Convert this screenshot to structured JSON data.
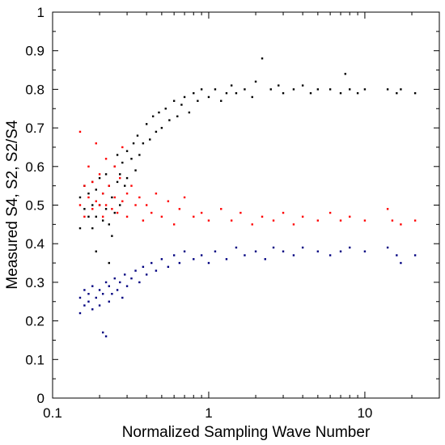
{
  "chart_data": {
    "type": "scatter",
    "title": "",
    "xlabel": "Normalized Sampling Wave Number",
    "ylabel": "Measured S4,  S2,  S2/S4",
    "x_scale": "log",
    "xlim": [
      0.1,
      30
    ],
    "ylim": [
      0,
      1
    ],
    "x_ticks": [
      0.1,
      1,
      10
    ],
    "x_tick_labels": [
      "0.1",
      "1",
      "10"
    ],
    "y_ticks": [
      0,
      0.1,
      0.2,
      0.3,
      0.4,
      0.5,
      0.6,
      0.7,
      0.8,
      0.9,
      1
    ],
    "y_tick_labels": [
      "0",
      "0.1",
      "0.2",
      "0.3",
      "0.4",
      "0.5",
      "0.6",
      "0.7",
      "0.8",
      "0.9",
      "1"
    ],
    "grid": false,
    "legend": "none",
    "series": [
      {
        "color": "#000000",
        "points": [
          [
            0.15,
            0.44
          ],
          [
            0.15,
            0.52
          ],
          [
            0.16,
            0.49
          ],
          [
            0.16,
            0.55
          ],
          [
            0.17,
            0.47
          ],
          [
            0.17,
            0.53
          ],
          [
            0.18,
            0.44
          ],
          [
            0.18,
            0.5
          ],
          [
            0.18,
            0.56
          ],
          [
            0.19,
            0.38
          ],
          [
            0.19,
            0.47
          ],
          [
            0.19,
            0.54
          ],
          [
            0.2,
            0.5
          ],
          [
            0.2,
            0.57
          ],
          [
            0.21,
            0.46
          ],
          [
            0.21,
            0.53
          ],
          [
            0.22,
            0.49
          ],
          [
            0.22,
            0.58
          ],
          [
            0.23,
            0.35
          ],
          [
            0.23,
            0.45
          ],
          [
            0.23,
            0.55
          ],
          [
            0.24,
            0.42
          ],
          [
            0.24,
            0.52
          ],
          [
            0.25,
            0.6
          ],
          [
            0.25,
            0.48
          ],
          [
            0.26,
            0.56
          ],
          [
            0.26,
            0.63
          ],
          [
            0.27,
            0.5
          ],
          [
            0.27,
            0.58
          ],
          [
            0.28,
            0.61
          ],
          [
            0.29,
            0.55
          ],
          [
            0.3,
            0.64
          ],
          [
            0.3,
            0.57
          ],
          [
            0.32,
            0.62
          ],
          [
            0.33,
            0.66
          ],
          [
            0.34,
            0.59
          ],
          [
            0.35,
            0.68
          ],
          [
            0.36,
            0.63
          ],
          [
            0.38,
            0.66
          ],
          [
            0.4,
            0.71
          ],
          [
            0.42,
            0.67
          ],
          [
            0.44,
            0.73
          ],
          [
            0.46,
            0.69
          ],
          [
            0.48,
            0.74
          ],
          [
            0.5,
            0.7
          ],
          [
            0.53,
            0.75
          ],
          [
            0.56,
            0.72
          ],
          [
            0.6,
            0.77
          ],
          [
            0.63,
            0.73
          ],
          [
            0.67,
            0.76
          ],
          [
            0.7,
            0.78
          ],
          [
            0.75,
            0.74
          ],
          [
            0.8,
            0.79
          ],
          [
            0.85,
            0.77
          ],
          [
            0.9,
            0.8
          ],
          [
            1.0,
            0.78
          ],
          [
            1.1,
            0.8
          ],
          [
            1.2,
            0.77
          ],
          [
            1.3,
            0.79
          ],
          [
            1.4,
            0.81
          ],
          [
            1.5,
            0.79
          ],
          [
            1.7,
            0.8
          ],
          [
            1.9,
            0.78
          ],
          [
            2.0,
            0.82
          ],
          [
            2.2,
            0.88
          ],
          [
            2.5,
            0.8
          ],
          [
            2.8,
            0.81
          ],
          [
            3.0,
            0.79
          ],
          [
            3.5,
            0.8
          ],
          [
            4.0,
            0.81
          ],
          [
            4.5,
            0.79
          ],
          [
            5.0,
            0.8
          ],
          [
            6.0,
            0.8
          ],
          [
            7.0,
            0.79
          ],
          [
            7.5,
            0.84
          ],
          [
            8.0,
            0.8
          ],
          [
            9.0,
            0.79
          ],
          [
            10.0,
            0.8
          ],
          [
            14.0,
            0.8
          ],
          [
            16.0,
            0.79
          ],
          [
            17.0,
            0.8
          ],
          [
            21.0,
            0.79
          ]
        ]
      },
      {
        "color": "#ff0000",
        "points": [
          [
            0.15,
            0.69
          ],
          [
            0.15,
            0.5
          ],
          [
            0.16,
            0.55
          ],
          [
            0.16,
            0.47
          ],
          [
            0.17,
            0.6
          ],
          [
            0.17,
            0.52
          ],
          [
            0.18,
            0.49
          ],
          [
            0.18,
            0.56
          ],
          [
            0.19,
            0.51
          ],
          [
            0.19,
            0.66
          ],
          [
            0.2,
            0.5
          ],
          [
            0.2,
            0.58
          ],
          [
            0.21,
            0.53
          ],
          [
            0.21,
            0.47
          ],
          [
            0.22,
            0.62
          ],
          [
            0.22,
            0.5
          ],
          [
            0.23,
            0.55
          ],
          [
            0.24,
            0.49
          ],
          [
            0.25,
            0.6
          ],
          [
            0.25,
            0.52
          ],
          [
            0.26,
            0.48
          ],
          [
            0.27,
            0.57
          ],
          [
            0.28,
            0.51
          ],
          [
            0.28,
            0.65
          ],
          [
            0.3,
            0.53
          ],
          [
            0.3,
            0.47
          ],
          [
            0.32,
            0.55
          ],
          [
            0.34,
            0.5
          ],
          [
            0.36,
            0.52
          ],
          [
            0.38,
            0.46
          ],
          [
            0.4,
            0.5
          ],
          [
            0.43,
            0.48
          ],
          [
            0.46,
            0.53
          ],
          [
            0.5,
            0.47
          ],
          [
            0.55,
            0.51
          ],
          [
            0.6,
            0.45
          ],
          [
            0.65,
            0.49
          ],
          [
            0.7,
            0.52
          ],
          [
            0.8,
            0.47
          ],
          [
            0.9,
            0.48
          ],
          [
            1.0,
            0.46
          ],
          [
            1.2,
            0.49
          ],
          [
            1.4,
            0.46
          ],
          [
            1.6,
            0.48
          ],
          [
            1.9,
            0.45
          ],
          [
            2.2,
            0.47
          ],
          [
            2.6,
            0.46
          ],
          [
            3.0,
            0.48
          ],
          [
            3.5,
            0.45
          ],
          [
            4.0,
            0.47
          ],
          [
            5.0,
            0.46
          ],
          [
            6.0,
            0.48
          ],
          [
            7.0,
            0.46
          ],
          [
            8.0,
            0.47
          ],
          [
            10.0,
            0.46
          ],
          [
            14.0,
            0.49
          ],
          [
            15.0,
            0.46
          ],
          [
            17.0,
            0.45
          ],
          [
            21.0,
            0.46
          ]
        ]
      },
      {
        "color": "#000080",
        "points": [
          [
            0.15,
            0.22
          ],
          [
            0.15,
            0.26
          ],
          [
            0.16,
            0.24
          ],
          [
            0.16,
            0.28
          ],
          [
            0.17,
            0.25
          ],
          [
            0.17,
            0.27
          ],
          [
            0.18,
            0.23
          ],
          [
            0.18,
            0.29
          ],
          [
            0.19,
            0.26
          ],
          [
            0.2,
            0.28
          ],
          [
            0.2,
            0.24
          ],
          [
            0.21,
            0.17
          ],
          [
            0.21,
            0.27
          ],
          [
            0.22,
            0.3
          ],
          [
            0.22,
            0.16
          ],
          [
            0.23,
            0.25
          ],
          [
            0.23,
            0.29
          ],
          [
            0.24,
            0.27
          ],
          [
            0.25,
            0.31
          ],
          [
            0.26,
            0.28
          ],
          [
            0.27,
            0.3
          ],
          [
            0.28,
            0.26
          ],
          [
            0.29,
            0.32
          ],
          [
            0.3,
            0.29
          ],
          [
            0.32,
            0.31
          ],
          [
            0.34,
            0.33
          ],
          [
            0.36,
            0.3
          ],
          [
            0.38,
            0.34
          ],
          [
            0.4,
            0.32
          ],
          [
            0.43,
            0.35
          ],
          [
            0.46,
            0.33
          ],
          [
            0.5,
            0.36
          ],
          [
            0.55,
            0.34
          ],
          [
            0.6,
            0.37
          ],
          [
            0.65,
            0.35
          ],
          [
            0.7,
            0.38
          ],
          [
            0.8,
            0.36
          ],
          [
            0.9,
            0.37
          ],
          [
            1.0,
            0.35
          ],
          [
            1.1,
            0.38
          ],
          [
            1.3,
            0.36
          ],
          [
            1.5,
            0.39
          ],
          [
            1.7,
            0.37
          ],
          [
            2.0,
            0.38
          ],
          [
            2.3,
            0.36
          ],
          [
            2.6,
            0.39
          ],
          [
            3.0,
            0.38
          ],
          [
            3.5,
            0.37
          ],
          [
            4.0,
            0.39
          ],
          [
            5.0,
            0.38
          ],
          [
            6.0,
            0.37
          ],
          [
            7.0,
            0.38
          ],
          [
            8.0,
            0.39
          ],
          [
            10.0,
            0.38
          ],
          [
            14.0,
            0.39
          ],
          [
            16.0,
            0.37
          ],
          [
            17.0,
            0.35
          ],
          [
            21.0,
            0.37
          ]
        ]
      }
    ]
  }
}
